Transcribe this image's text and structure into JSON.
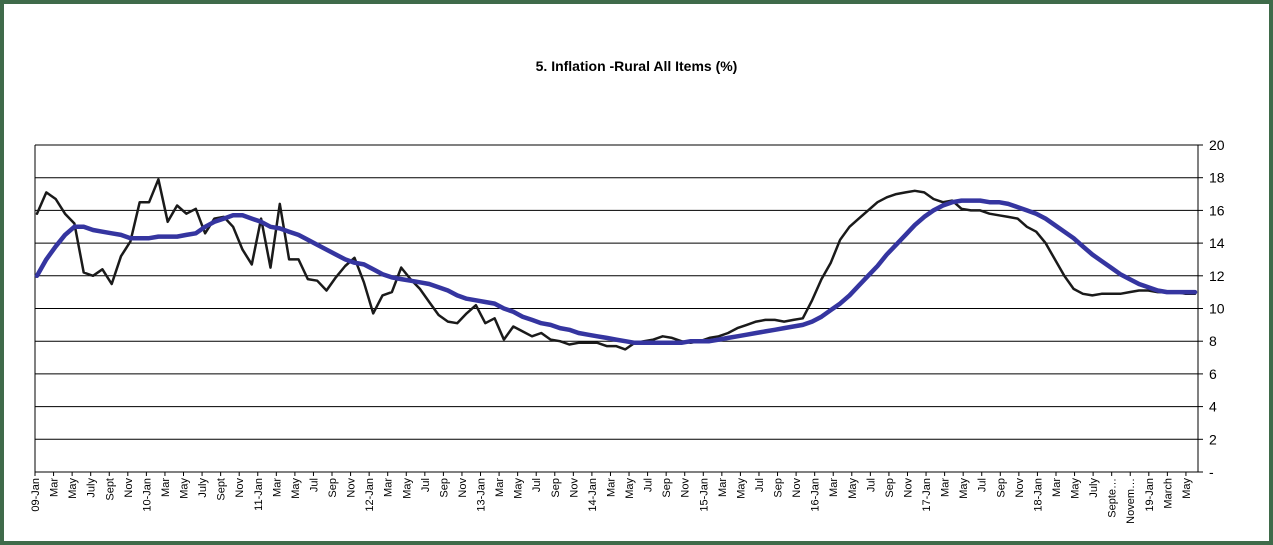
{
  "chart_data": {
    "type": "line",
    "title": "5. Inflation -Rural All Items (%)",
    "xlabel": "",
    "ylabel": "",
    "ylim": [
      0,
      20
    ],
    "yticks": [
      "-",
      "2",
      "4",
      "6",
      "8",
      "10",
      "12",
      "14",
      "16",
      "18",
      "20"
    ],
    "grid": true,
    "legend": "none",
    "x_ticks": [
      "09-Jan",
      "Mar",
      "May",
      "July",
      "Sept",
      "Nov",
      "10-Jan",
      "Mar",
      "May",
      "July",
      "Sept",
      "Nov",
      "11-Jan",
      "Mar",
      "May",
      "Jul",
      "Sep",
      "Nov",
      "12-Jan",
      "Mar",
      "May",
      "Jul",
      "Sep",
      "Nov",
      "13-Jan",
      "Mar",
      "May",
      "Jul",
      "Sep",
      "Nov",
      "14-Jan",
      "Mar",
      "May",
      "Jul",
      "Sep",
      "Nov",
      "15-Jan",
      "Mar",
      "May",
      "Jul",
      "Sep",
      "Nov",
      "16-Jan",
      "Mar",
      "May",
      "Jul",
      "Sep",
      "Nov",
      "17-Jan",
      "Mar",
      "May",
      "Jul",
      "Sep",
      "Nov",
      "18-Jan",
      "Mar",
      "May",
      "July",
      "Septe…",
      "Novem…",
      "19-Jan",
      "March",
      "May"
    ],
    "series": [
      {
        "color": "#1a1a1a",
        "values": [
          15.8,
          17.1,
          16.7,
          15.8,
          15.2,
          12.2,
          12.0,
          12.4,
          11.5,
          13.2,
          14.1,
          16.5,
          16.5,
          17.9,
          15.3,
          16.3,
          15.8,
          16.1,
          14.6,
          15.5,
          15.6,
          15.0,
          13.6,
          12.7,
          15.5,
          12.5,
          16.4,
          13.0,
          13.0,
          11.8,
          11.7,
          11.1,
          11.9,
          12.6,
          13.1,
          11.6,
          9.7,
          10.8,
          11.0,
          12.5,
          11.8,
          11.2,
          10.4,
          9.6,
          9.2,
          9.1,
          9.7,
          10.2,
          9.1,
          9.4,
          8.1,
          8.9,
          8.6,
          8.3,
          8.5,
          8.1,
          8.0,
          7.8,
          7.9,
          7.9,
          7.9,
          7.7,
          7.7,
          7.5,
          7.9,
          8.0,
          8.1,
          8.3,
          8.2,
          8.0,
          7.9,
          8.0,
          8.2,
          8.3,
          8.5,
          8.8,
          9.0,
          9.2,
          9.3,
          9.3,
          9.2,
          9.3,
          9.4,
          10.5,
          11.8,
          12.8,
          14.2,
          15.0,
          15.5,
          16.0,
          16.5,
          16.8,
          17.0,
          17.1,
          17.2,
          17.1,
          16.7,
          16.5,
          16.6,
          16.1,
          16.0,
          16.0,
          15.8,
          15.7,
          15.6,
          15.5,
          15.0,
          14.7,
          14.0,
          13.0,
          12.0,
          11.2,
          10.9,
          10.8,
          10.9,
          10.9,
          10.9,
          11.0,
          11.1,
          11.1,
          11.0,
          11.0,
          11.0,
          10.9,
          10.9
        ]
      },
      {
        "color": "#3535a0",
        "values": [
          12.0,
          13.0,
          13.8,
          14.5,
          15.0,
          15.0,
          14.8,
          14.7,
          14.6,
          14.5,
          14.3,
          14.3,
          14.3,
          14.4,
          14.4,
          14.4,
          14.5,
          14.6,
          15.0,
          15.3,
          15.5,
          15.7,
          15.7,
          15.5,
          15.3,
          15.0,
          14.9,
          14.7,
          14.5,
          14.2,
          13.9,
          13.6,
          13.3,
          13.0,
          12.8,
          12.7,
          12.4,
          12.1,
          11.9,
          11.8,
          11.7,
          11.6,
          11.5,
          11.3,
          11.1,
          10.8,
          10.6,
          10.5,
          10.4,
          10.3,
          10.0,
          9.8,
          9.5,
          9.3,
          9.1,
          9.0,
          8.8,
          8.7,
          8.5,
          8.4,
          8.3,
          8.2,
          8.1,
          8.0,
          7.9,
          7.9,
          7.9,
          7.9,
          7.9,
          7.9,
          8.0,
          8.0,
          8.0,
          8.1,
          8.2,
          8.3,
          8.4,
          8.5,
          8.6,
          8.7,
          8.8,
          8.9,
          9.0,
          9.2,
          9.5,
          9.9,
          10.3,
          10.8,
          11.4,
          12.0,
          12.6,
          13.3,
          13.9,
          14.5,
          15.1,
          15.6,
          16.0,
          16.3,
          16.5,
          16.6,
          16.6,
          16.6,
          16.5,
          16.5,
          16.4,
          16.2,
          16.0,
          15.8,
          15.5,
          15.1,
          14.7,
          14.3,
          13.8,
          13.3,
          12.9,
          12.5,
          12.1,
          11.8,
          11.5,
          11.3,
          11.1,
          11.0,
          11.0,
          11.0,
          11.0
        ]
      }
    ]
  }
}
